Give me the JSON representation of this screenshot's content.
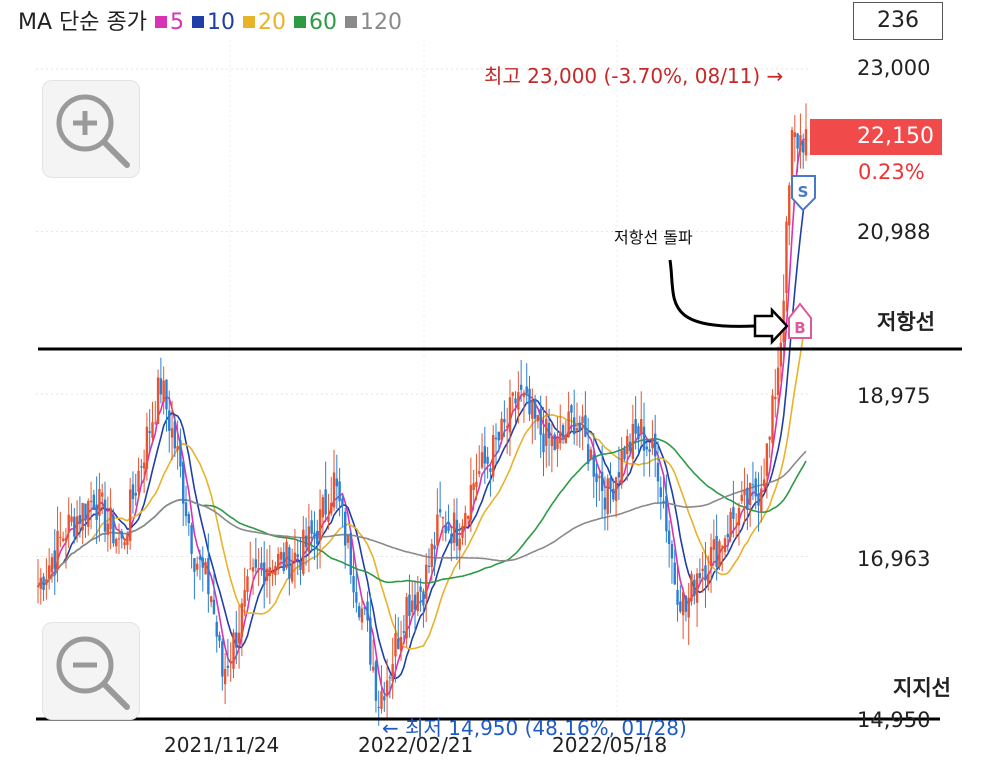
{
  "legend": {
    "title": "MA 단순 종가",
    "items": [
      {
        "label": "5",
        "color": "#d633b5"
      },
      {
        "label": "10",
        "color": "#1f3fa8"
      },
      {
        "label": "20",
        "color": "#e8b22a"
      },
      {
        "label": "60",
        "color": "#2e9a45"
      },
      {
        "label": "120",
        "color": "#8a8a8a"
      }
    ]
  },
  "count": "236",
  "current_price": "22,150",
  "change_pct": "0.23%",
  "high_annotation": "최고 23,000 (-3.70%, 08/11) →",
  "low_annotation": "← 최저 14,950 (48.16%, 01/28)",
  "breakout_label": "저항선 돌파",
  "resistance_label": "저항선",
  "support_label": "지지선",
  "markers": {
    "buy": "B",
    "sell": "S"
  },
  "chart_data": {
    "type": "candlestick",
    "y_ticks": [
      "23,000",
      "20,988",
      "18,975",
      "16,963",
      "14,950"
    ],
    "x_ticks": [
      "2021/11/24",
      "2022/02/21",
      "2022/05/18"
    ],
    "ylim": [
      14950,
      23000
    ],
    "high": 23000,
    "low": 14950,
    "last": 22150,
    "resistance": 19550,
    "support": 14950,
    "candles": []
  }
}
